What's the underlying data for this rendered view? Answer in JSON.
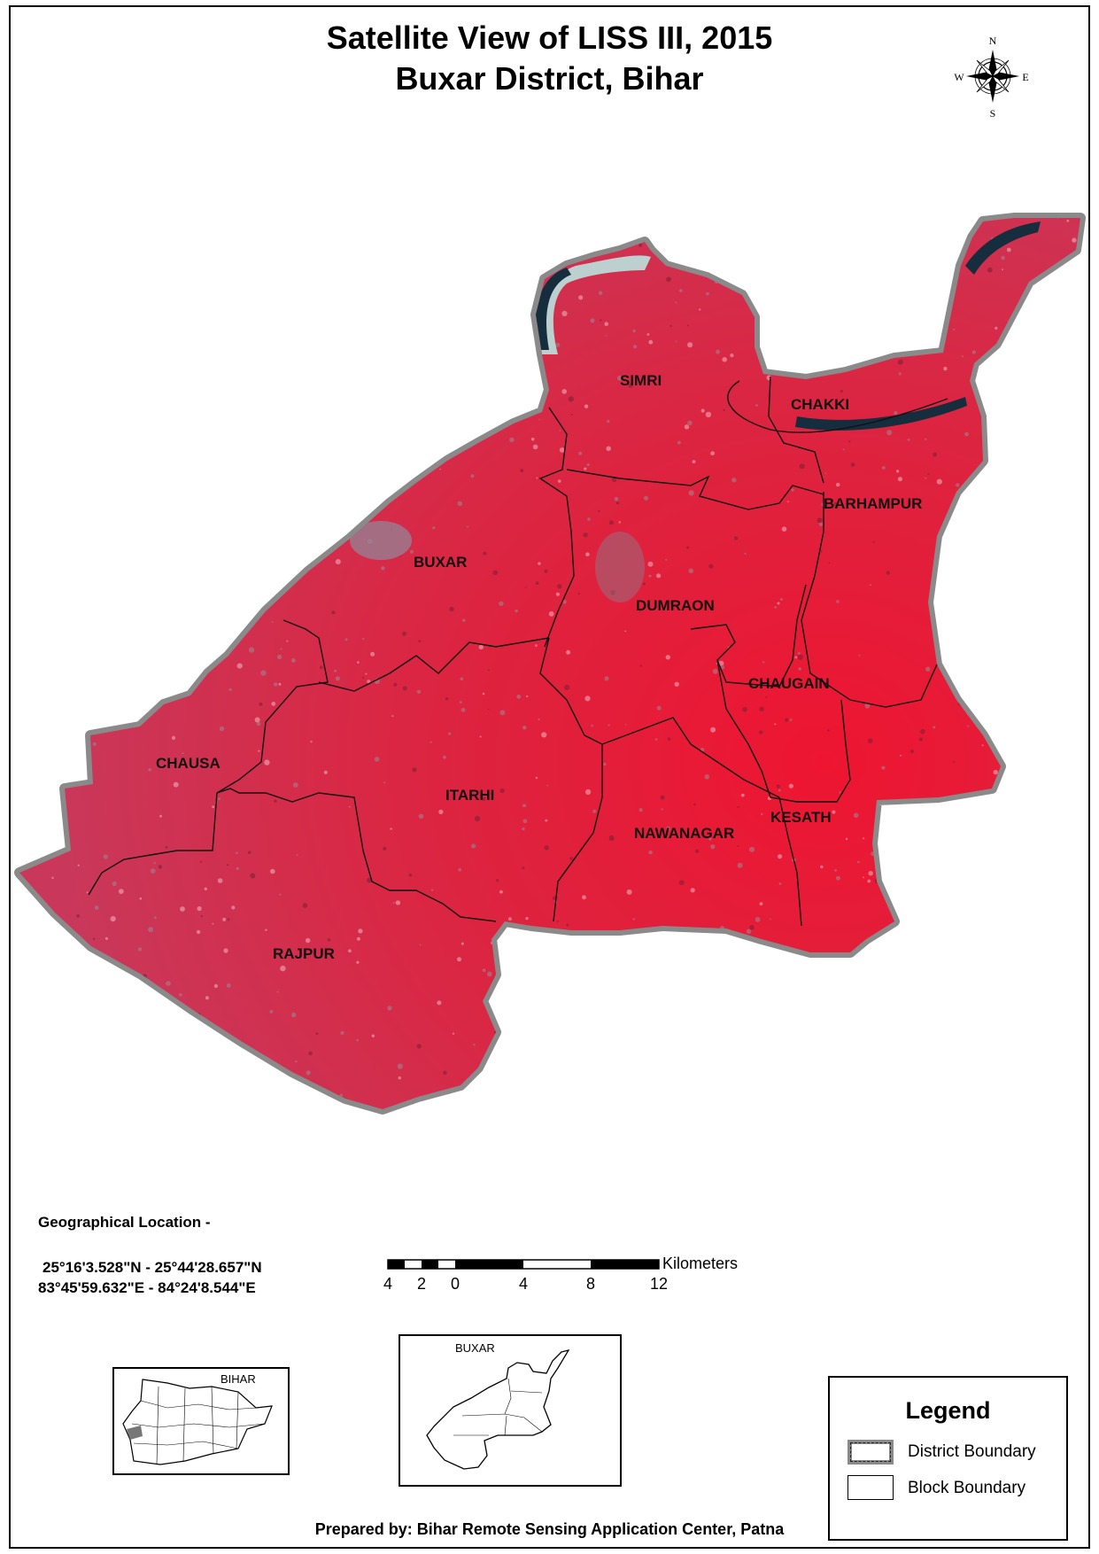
{
  "title": {
    "line1": "Satellite View of LISS III, 2015",
    "line2": "Buxar District, Bihar"
  },
  "north_arrow": {
    "icon": "compass-rose-icon",
    "n": "N",
    "s": "S",
    "e": "E",
    "w": "W"
  },
  "blocks": [
    {
      "id": "simri",
      "label": "SIMRI"
    },
    {
      "id": "chakki",
      "label": "CHAKKI"
    },
    {
      "id": "barhampur",
      "label": "BARHAMPUR"
    },
    {
      "id": "buxar",
      "label": "BUXAR"
    },
    {
      "id": "dumraon",
      "label": "DUMRAON"
    },
    {
      "id": "chaugain",
      "label": "CHAUGAIN"
    },
    {
      "id": "chausa",
      "label": "CHAUSA"
    },
    {
      "id": "itarhi",
      "label": "ITARHI"
    },
    {
      "id": "kesath",
      "label": "KESATH"
    },
    {
      "id": "nawanagar",
      "label": "NAWANAGAR"
    },
    {
      "id": "rajpur",
      "label": "RAJPUR"
    }
  ],
  "geo_location": {
    "heading": "Geographical Location -",
    "latitude": "25°16'3.528\"N - 25°44'28.657\"N",
    "longitude": "83°45'59.632\"E - 84°24'8.544\"E"
  },
  "scale_bar": {
    "unit": "Kilometers",
    "ticks": [
      "4",
      "2",
      "0",
      "4",
      "8",
      "12"
    ]
  },
  "insets": {
    "bihar": {
      "label": "BIHAR"
    },
    "buxar": {
      "label": "BUXAR"
    }
  },
  "legend": {
    "title": "Legend",
    "items": [
      {
        "label": "District Boundary"
      },
      {
        "label": "Block Boundary"
      }
    ]
  },
  "colors": {
    "vegetation": "#d4284a",
    "vegetation_bright": "#ee1531",
    "river": "#152d3c",
    "sand": "#bcd0cf",
    "boundary_gray": "#8a8a8a"
  },
  "credit": "Prepared by: Bihar Remote Sensing Application Center, Patna"
}
